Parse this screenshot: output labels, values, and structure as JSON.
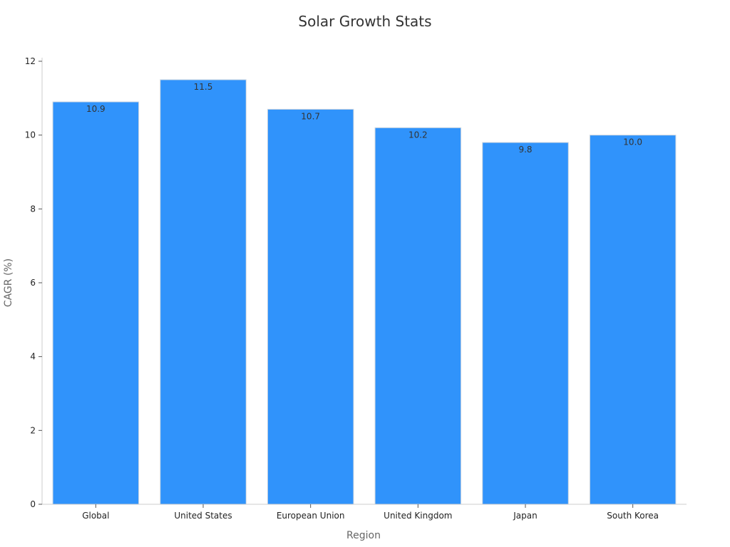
{
  "chart_data": {
    "type": "bar",
    "title": "Solar Growth Stats",
    "xlabel": "Region",
    "ylabel": "CAGR (%)",
    "categories": [
      "Global",
      "United States",
      "European Union",
      "United Kingdom",
      "Japan",
      "South Korea"
    ],
    "values": [
      10.9,
      11.5,
      10.7,
      10.2,
      9.8,
      10.0
    ],
    "data_labels": [
      "10.9",
      "11.5",
      "10.7",
      "10.2",
      "9.8",
      "10.0"
    ],
    "ylim": [
      0,
      12
    ],
    "yticks": [
      0,
      2,
      4,
      6,
      8,
      10,
      12
    ],
    "ytick_labels": [
      "0",
      "2",
      "4",
      "6",
      "8",
      "10",
      "12"
    ],
    "grid": false,
    "legend": "none",
    "bar_color": "#3093fb",
    "bar_edge_color": "#d0d8e0"
  }
}
